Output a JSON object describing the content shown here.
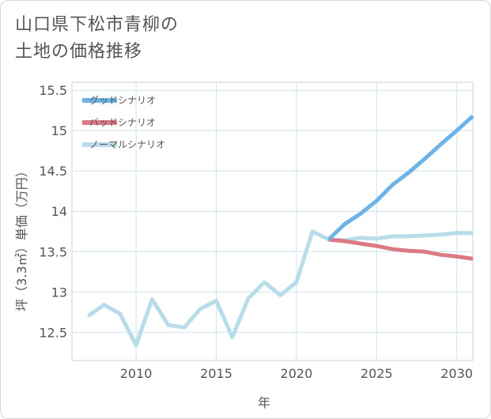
{
  "title": {
    "line1": "山口県下松市青柳の",
    "line2": "土地の価格推移"
  },
  "chart_data": {
    "type": "line",
    "xlabel": "年",
    "ylabel": "坪（3.3㎡）単価（万円）",
    "xlim": [
      2006,
      2031
    ],
    "ylim": [
      12.15,
      15.6
    ],
    "x_ticks": [
      2010,
      2015,
      2020,
      2025,
      2030
    ],
    "x_tick_labels": [
      "2010",
      "2015",
      "2020",
      "2025",
      "2030"
    ],
    "y_ticks": [
      12.5,
      13,
      13.5,
      14,
      14.5,
      15,
      15.5
    ],
    "y_tick_labels": [
      "12.5",
      "13",
      "13.5",
      "14",
      "14.5",
      "15",
      "15.5"
    ],
    "grid": true,
    "legend_position": "top-left",
    "series": [
      {
        "name": "グッドシナリオ",
        "color": "#6cb4e8",
        "x": [
          2022,
          2023,
          2024,
          2025,
          2026,
          2027,
          2028,
          2029,
          2030,
          2031
        ],
        "values": [
          13.65,
          13.84,
          13.97,
          14.13,
          14.33,
          14.48,
          14.65,
          14.83,
          15.0,
          15.18
        ]
      },
      {
        "name": "バッドシナリオ",
        "color": "#dc7a84",
        "x": [
          2022,
          2023,
          2024,
          2025,
          2026,
          2027,
          2028,
          2029,
          2030,
          2031
        ],
        "values": [
          13.65,
          13.63,
          13.6,
          13.57,
          13.53,
          13.51,
          13.5,
          13.46,
          13.44,
          13.41
        ]
      },
      {
        "name": "ノーマルシナリオ",
        "color": "#b9dcea",
        "x": [
          2007,
          2008,
          2009,
          2010,
          2011,
          2012,
          2013,
          2014,
          2015,
          2016,
          2017,
          2018,
          2019,
          2020,
          2021,
          2022,
          2023,
          2024,
          2025,
          2026,
          2027,
          2028,
          2029,
          2030,
          2031
        ],
        "values": [
          12.7,
          12.84,
          12.73,
          12.34,
          12.91,
          12.59,
          12.56,
          12.79,
          12.89,
          12.44,
          12.92,
          13.12,
          12.96,
          13.12,
          13.75,
          13.65,
          13.64,
          13.67,
          13.66,
          13.69,
          13.69,
          13.7,
          13.71,
          13.73,
          13.73
        ]
      }
    ]
  }
}
